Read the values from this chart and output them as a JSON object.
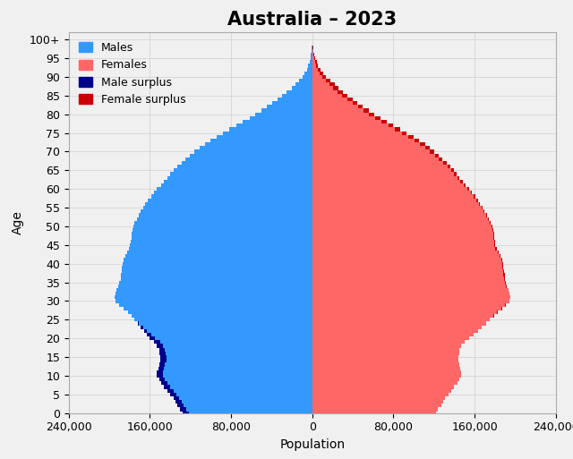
{
  "title": "Australia – 2023",
  "xlabel": "Population",
  "ylabel": "Age",
  "xlim": [
    -240000,
    240000
  ],
  "ylim": [
    0,
    102
  ],
  "xticks": [
    -240000,
    -160000,
    -80000,
    0,
    80000,
    160000,
    240000
  ],
  "xtick_labels": [
    "240,000",
    "160,000",
    "80,000",
    "0",
    "80,000",
    "160,000",
    "240,000"
  ],
  "yticks": [
    0,
    5,
    10,
    15,
    20,
    25,
    30,
    35,
    40,
    45,
    50,
    55,
    60,
    65,
    70,
    75,
    80,
    85,
    90,
    95,
    100
  ],
  "ytick_labels": [
    "0",
    "5",
    "10",
    "15",
    "20",
    "25",
    "30",
    "35",
    "40",
    "45",
    "50",
    "55",
    "60",
    "65",
    "70",
    "75",
    "80",
    "85",
    "90",
    "95",
    "100+"
  ],
  "color_male": "#3399FF",
  "color_female": "#FF6666",
  "color_male_surplus": "#00008B",
  "color_female_surplus": "#CC0000",
  "background_color": "#f0f0f0",
  "plot_bg_color": "#f0f0f0",
  "grid_color": "#d0d0d0",
  "title_fontsize": 15,
  "legend_fontsize": 9,
  "ages": [
    0,
    1,
    2,
    3,
    4,
    5,
    6,
    7,
    8,
    9,
    10,
    11,
    12,
    13,
    14,
    15,
    16,
    17,
    18,
    19,
    20,
    21,
    22,
    23,
    24,
    25,
    26,
    27,
    28,
    29,
    30,
    31,
    32,
    33,
    34,
    35,
    36,
    37,
    38,
    39,
    40,
    41,
    42,
    43,
    44,
    45,
    46,
    47,
    48,
    49,
    50,
    51,
    52,
    53,
    54,
    55,
    56,
    57,
    58,
    59,
    60,
    61,
    62,
    63,
    64,
    65,
    66,
    67,
    68,
    69,
    70,
    71,
    72,
    73,
    74,
    75,
    76,
    77,
    78,
    79,
    80,
    81,
    82,
    83,
    84,
    85,
    86,
    87,
    88,
    89,
    90,
    91,
    92,
    93,
    94,
    95,
    96,
    97,
    98,
    99,
    100
  ],
  "males": [
    128000,
    130000,
    133000,
    135000,
    137000,
    140000,
    143000,
    146000,
    149000,
    151000,
    153000,
    153000,
    152000,
    151000,
    150000,
    150000,
    150500,
    151000,
    153000,
    156000,
    160000,
    163000,
    166000,
    169000,
    172000,
    175000,
    178000,
    182000,
    186000,
    190000,
    194000,
    195000,
    194000,
    193000,
    191000,
    190000,
    189000,
    188500,
    188000,
    187500,
    187000,
    186000,
    184500,
    182500,
    180500,
    179500,
    179000,
    178500,
    178000,
    177500,
    176500,
    175000,
    173000,
    171000,
    169000,
    167000,
    164500,
    162000,
    159000,
    156000,
    153000,
    149000,
    146000,
    143000,
    140000,
    137000,
    133000,
    129000,
    125000,
    121000,
    116000,
    111000,
    106000,
    100500,
    94500,
    88000,
    81500,
    75000,
    68500,
    62000,
    56000,
    50500,
    45000,
    39500,
    34500,
    29500,
    25000,
    20500,
    16500,
    13000,
    9800,
    7500,
    5500,
    3900,
    2700,
    1800,
    1200,
    700,
    400,
    200,
    90
  ],
  "females": [
    122000,
    124000,
    127000,
    129000,
    131000,
    134000,
    137000,
    140000,
    143000,
    145000,
    147000,
    147000,
    146000,
    145000,
    144000,
    144000,
    144500,
    145000,
    147000,
    150000,
    155000,
    159000,
    163000,
    167000,
    171000,
    175000,
    179000,
    183000,
    187000,
    191000,
    194500,
    195000,
    194000,
    193000,
    191500,
    190500,
    190000,
    189500,
    189000,
    188500,
    188000,
    187000,
    185500,
    183500,
    181500,
    180500,
    180000,
    179500,
    179000,
    178500,
    177500,
    176000,
    174000,
    172000,
    170000,
    168000,
    165500,
    163000,
    160500,
    157500,
    154500,
    151000,
    148000,
    145000,
    142000,
    139500,
    136000,
    132500,
    128500,
    124500,
    120500,
    116000,
    111000,
    105500,
    99500,
    93000,
    86500,
    80000,
    73500,
    67000,
    61000,
    55500,
    50000,
    44500,
    39500,
    35000,
    30500,
    26000,
    22000,
    17800,
    13800,
    10600,
    8000,
    5900,
    4300,
    3000,
    2000,
    1300,
    750,
    390,
    170
  ]
}
